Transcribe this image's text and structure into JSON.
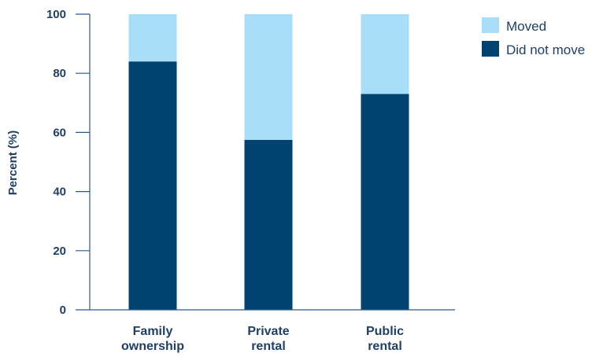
{
  "colors": {
    "moved": "#A8DEF7",
    "did_not_move": "#004370",
    "text": "#1F3F66",
    "axis": "#2E5A87"
  },
  "chart_data": {
    "type": "bar",
    "stacked": true,
    "categories": [
      [
        "Family",
        "ownership"
      ],
      [
        "Private",
        "rental"
      ],
      [
        "Public",
        "rental"
      ]
    ],
    "series": [
      {
        "name": "Did not move",
        "values": [
          84,
          57.5,
          73
        ]
      },
      {
        "name": "Moved",
        "values": [
          16,
          42.5,
          27
        ]
      }
    ],
    "ylabel": "Percent (%)",
    "ylim": [
      0,
      100
    ],
    "yticks": [
      "0",
      "20",
      "40",
      "60",
      "80",
      "100"
    ],
    "legend": {
      "position": "top-right",
      "entries": [
        "Moved",
        "Did not move"
      ]
    },
    "grid": false
  }
}
